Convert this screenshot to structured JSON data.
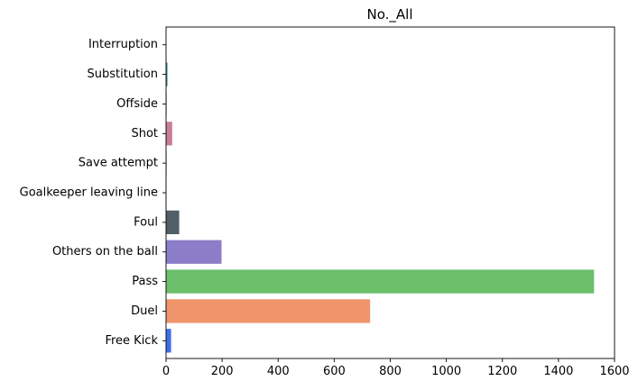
{
  "chart_data": {
    "type": "bar",
    "orientation": "horizontal",
    "title": "No._All",
    "xlabel": "",
    "ylabel": "",
    "xlim": [
      0,
      1600
    ],
    "xticks": [
      0,
      200,
      400,
      600,
      800,
      1000,
      1200,
      1400,
      1600
    ],
    "grid": false,
    "categories": [
      "Free Kick",
      "Duel",
      "Pass",
      "Others on the ball",
      "Foul",
      "Goalkeeper leaving line",
      "Save attempt",
      "Shot",
      "Offside",
      "Substitution",
      "Interruption"
    ],
    "values": [
      18,
      728,
      1527,
      198,
      47,
      1,
      2,
      22,
      2,
      5,
      0
    ],
    "colors": [
      "#3f6ee8",
      "#f0956b",
      "#6cc06c",
      "#8c7dc8",
      "#515f66",
      "#5a6b8a",
      "#7a8a5a",
      "#c77f95",
      "#5a7a8a",
      "#3a8a8a",
      "#7a5a8a"
    ]
  }
}
